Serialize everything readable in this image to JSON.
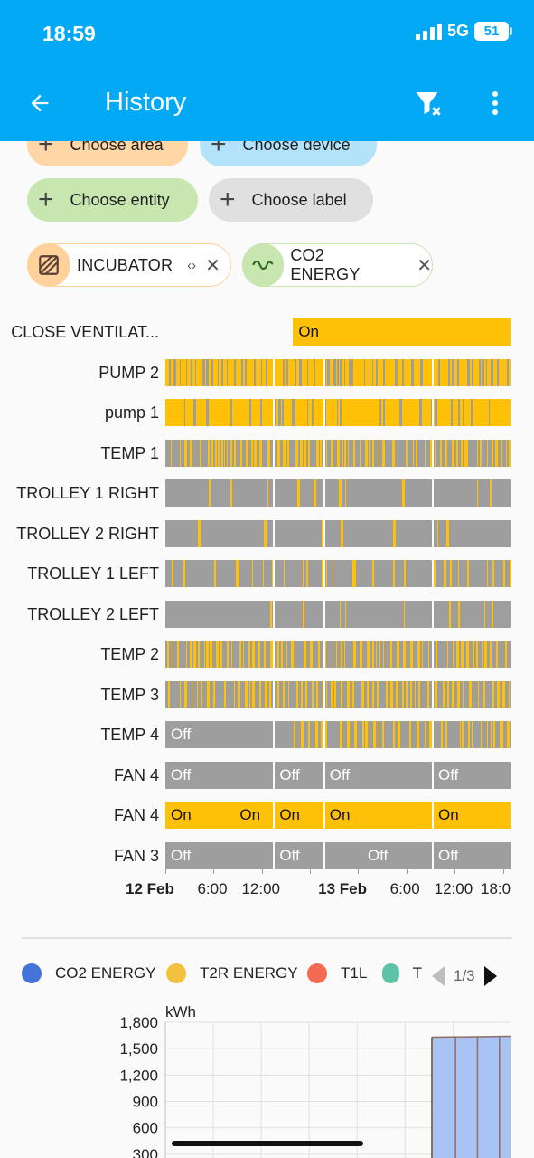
{
  "status_bar": {
    "time": "18:59",
    "network": "5G",
    "battery": "51"
  },
  "app_bar": {
    "title": "History",
    "back_icon": "arrow-left-icon",
    "filter_icon": "filter-remove-icon",
    "more_icon": "dots-vertical-icon"
  },
  "pickers": [
    {
      "id": "area",
      "label": "Choose area"
    },
    {
      "id": "device",
      "label": "Choose device"
    },
    {
      "id": "entity",
      "label": "Choose entity"
    },
    {
      "id": "label",
      "label": "Choose label"
    }
  ],
  "targets": [
    {
      "id": "incubator",
      "label": "INCUBATOR",
      "icon": "texture-box-icon",
      "color": "#ffd29b"
    },
    {
      "id": "co2",
      "label": "CO2 ENERGY",
      "icon": "sine-wave-icon",
      "color": "#c8e6b0"
    }
  ],
  "colors": {
    "on": "#ffc107",
    "off": "#9e9e9e",
    "accent": "#03a9f4"
  },
  "timeline": {
    "rows": [
      {
        "name": "CLOSE VENTILAT...",
        "pattern": "single_on",
        "segments": [
          {
            "state": "On",
            "start": 0.37,
            "end": 1.0
          }
        ]
      },
      {
        "name": "PUMP 2",
        "pattern": "mixed_on"
      },
      {
        "name": "pump 1",
        "pattern": "mostly_on"
      },
      {
        "name": "TEMP 1",
        "pattern": "mixed_balanced"
      },
      {
        "name": "TROLLEY 1 RIGHT",
        "pattern": "mostly_off"
      },
      {
        "name": "TROLLEY 2 RIGHT",
        "pattern": "mostly_off"
      },
      {
        "name": "TROLLEY 1 LEFT",
        "pattern": "mostly_off_sparse"
      },
      {
        "name": "TROLLEY 2 LEFT",
        "pattern": "mostly_off"
      },
      {
        "name": "TEMP 2",
        "pattern": "mixed_balanced"
      },
      {
        "name": "TEMP 3",
        "pattern": "mixed_balanced"
      },
      {
        "name": "TEMP 4",
        "pattern": "off_then_mixed",
        "segments": [
          {
            "state": "Off",
            "start": 0.0,
            "end": 0.37,
            "label": "Off"
          }
        ]
      },
      {
        "name": "FAN 4",
        "pattern": "blocks",
        "segments": [
          {
            "state": "Off",
            "start": 0.0,
            "end": 0.315,
            "label": "Off"
          },
          {
            "state": "Off",
            "start": 0.315,
            "end": 0.46,
            "label": "Off"
          },
          {
            "state": "Off",
            "start": 0.46,
            "end": 0.775,
            "label": "Off"
          },
          {
            "state": "Off",
            "start": 0.775,
            "end": 1.0,
            "label": "Off"
          }
        ]
      },
      {
        "name": "FAN 4",
        "pattern": "blocks",
        "segments": [
          {
            "state": "On",
            "start": 0.0,
            "end": 0.2,
            "label": "On"
          },
          {
            "state": "On",
            "start": 0.2,
            "end": 0.315,
            "label": "On"
          },
          {
            "state": "On",
            "start": 0.315,
            "end": 0.46,
            "label": "On"
          },
          {
            "state": "On",
            "start": 0.46,
            "end": 0.775,
            "label": "On"
          },
          {
            "state": "On",
            "start": 0.775,
            "end": 1.0,
            "label": "On"
          }
        ]
      },
      {
        "name": "FAN 3",
        "pattern": "blocks",
        "segments": [
          {
            "state": "Off",
            "start": 0.0,
            "end": 0.315,
            "label": "Off"
          },
          {
            "state": "Off",
            "start": 0.315,
            "end": 0.46,
            "label": "Off"
          },
          {
            "state": "Off",
            "start": 0.46,
            "end": 0.775,
            "label": "Off",
            "center": true
          },
          {
            "state": "Off",
            "start": 0.775,
            "end": 1.0,
            "label": "Off"
          }
        ]
      }
    ],
    "axis": [
      {
        "label": "12 Feb",
        "bold": true,
        "pos": 0.0
      },
      {
        "label": "6:00",
        "pos": 0.14
      },
      {
        "label": "12:00",
        "pos": 0.28
      },
      {
        "label": "",
        "pos": 0.42
      },
      {
        "label": "13 Feb",
        "bold": true,
        "pos": 0.558
      },
      {
        "label": "6:00",
        "pos": 0.698
      },
      {
        "label": "12:00",
        "pos": 0.838
      },
      {
        "label": "18:0",
        "pos": 0.978
      }
    ]
  },
  "energy_chart": {
    "legend": [
      {
        "name": "CO2 ENERGY",
        "color": "#4473d9"
      },
      {
        "name": "T2R ENERGY",
        "color": "#f4c13f"
      },
      {
        "name": "T1L",
        "color": "#f46a53"
      },
      {
        "name": "T",
        "color": "#5ec2a8"
      }
    ],
    "pager": "1/3",
    "unit": "kWh",
    "y_ticks": [
      "1,800",
      "1,500",
      "1,200",
      "900",
      "600",
      "300"
    ]
  },
  "chart_data": {
    "type": "area",
    "ylabel": "kWh",
    "ylim": [
      0,
      1800
    ],
    "y_ticks": [
      1800,
      1500,
      1200,
      900,
      600,
      300
    ],
    "series": [
      {
        "name": "CO2 ENERGY",
        "x": [
          "13 Feb 12:00",
          "13 Feb 18:00"
        ],
        "values": [
          1630,
          1640
        ]
      }
    ]
  }
}
